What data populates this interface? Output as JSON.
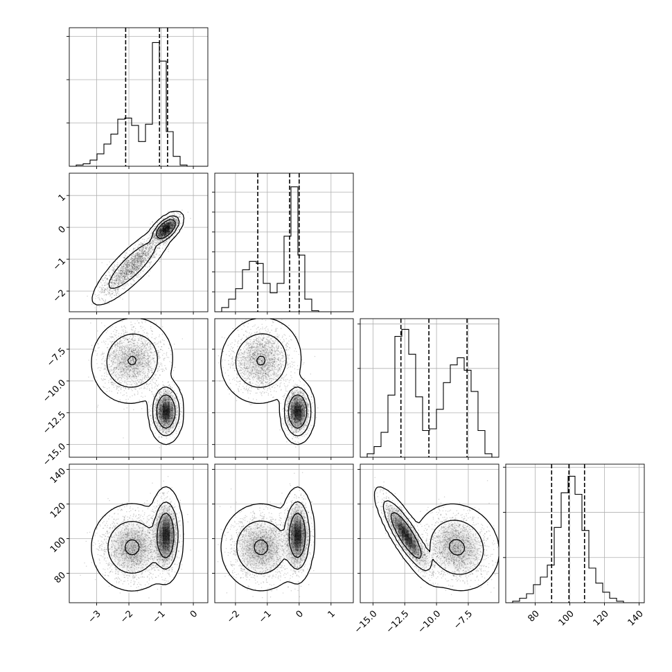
{
  "chart_data": {
    "type": "corner",
    "params": [
      {
        "range": [
          -3.85,
          0.45
        ],
        "ticks": [
          -3,
          -2,
          -1,
          0
        ],
        "tick_labels": [
          "−3",
          "−2",
          "−1",
          "0"
        ],
        "quantiles": [
          -2.1,
          -1.05,
          -0.8
        ]
      },
      {
        "range": [
          -2.65,
          1.7
        ],
        "ticks": [
          -2,
          -1,
          0,
          1
        ],
        "tick_labels": [
          "−2",
          "−1",
          "0",
          "1"
        ],
        "quantiles": [
          -1.3,
          -0.3,
          0.0
        ]
      },
      {
        "range": [
          -16.0,
          -5.1
        ],
        "ticks": [
          -15.0,
          -12.5,
          -10.0,
          -7.5
        ],
        "tick_labels": [
          "−15.0",
          "−12.5",
          "−10.0",
          "−7.5"
        ],
        "quantiles": [
          -12.8,
          -10.6,
          -7.6
        ]
      },
      {
        "range": [
          63,
          143
        ],
        "ticks": [
          80,
          100,
          120,
          140
        ],
        "tick_labels": [
          "80",
          "100",
          "120",
          "140"
        ],
        "quantiles": [
          89.5,
          99.5,
          108.5
        ]
      }
    ],
    "histograms": [
      {
        "bins": [
          -3.85,
          -3.635,
          -3.42,
          -3.205,
          -2.99,
          -2.775,
          -2.56,
          -2.345,
          -2.13,
          -1.915,
          -1.7,
          -1.485,
          -1.27,
          -1.055,
          -0.84,
          -0.625,
          -0.41,
          -0.195,
          0.02,
          0.235,
          0.45
        ],
        "counts": [
          0,
          1,
          2,
          5,
          10,
          18,
          26,
          38,
          39,
          33,
          20,
          34,
          100,
          85,
          28,
          8,
          1,
          0,
          0,
          0
        ],
        "ymax": 112,
        "yticks": [
          0,
          35,
          70,
          105
        ]
      },
      {
        "bins": [
          -2.65,
          -2.4325,
          -2.215,
          -1.9975,
          -1.78,
          -1.5625,
          -1.345,
          -1.1275,
          -0.91,
          -0.6925,
          -0.475,
          -0.2575,
          -0.04,
          0.1775,
          0.395,
          0.6125,
          0.83,
          1.0475,
          1.265,
          1.4825,
          1.7
        ],
        "counts": [
          0,
          4,
          12,
          22,
          40,
          48,
          46,
          27,
          18,
          27,
          72,
          119,
          54,
          12,
          1,
          0,
          0,
          0,
          0,
          0
        ],
        "ymax": 132,
        "yticks": [
          0,
          19,
          38,
          57,
          76,
          95,
          114
        ]
      },
      {
        "bins": [
          -16.0,
          -15.455,
          -14.91,
          -14.365,
          -13.82,
          -13.275,
          -12.73,
          -12.185,
          -11.64,
          -11.095,
          -10.55,
          -10.005,
          -9.46,
          -8.915,
          -8.37,
          -7.825,
          -7.28,
          -6.735,
          -6.19,
          -5.645,
          -5.1
        ],
        "counts": [
          0,
          2,
          6,
          14,
          35,
          68,
          72,
          58,
          34,
          15,
          16,
          27,
          42,
          52,
          56,
          49,
          37,
          15,
          2,
          0
        ],
        "ymax": 78,
        "yticks": [
          0,
          25,
          50,
          75
        ]
      },
      {
        "bins": [
          63,
          67,
          71,
          75,
          79,
          83,
          87,
          91,
          95,
          99,
          103,
          107,
          111,
          115,
          119,
          123,
          127,
          131,
          135,
          139,
          143
        ],
        "counts": [
          0,
          1,
          3,
          6,
          12,
          17,
          25,
          50,
          73,
          84,
          72,
          48,
          23,
          13,
          7,
          3,
          1,
          0,
          0,
          0
        ],
        "ymax": 92,
        "yticks": [
          0,
          30,
          60,
          90
        ]
      }
    ],
    "modes": [
      {
        "weight": 0.52,
        "mean": [
          -1.9,
          -1.2,
          -8.4,
          95
        ],
        "sd": [
          0.45,
          0.45,
          1.2,
          9
        ]
      },
      {
        "weight": 0.48,
        "mean": [
          -0.85,
          -0.05,
          -12.4,
          102
        ],
        "sd": [
          0.17,
          0.17,
          0.8,
          9
        ]
      }
    ],
    "mode_corr": [
      [
        [
          1,
          0.85,
          0.05,
          0
        ],
        [
          0.85,
          1,
          0.05,
          0
        ],
        [
          0.05,
          0.05,
          1,
          -0.1
        ],
        [
          0,
          0,
          -0.1,
          1
        ]
      ],
      [
        [
          1,
          0.6,
          0,
          0
        ],
        [
          0.6,
          1,
          0,
          0
        ],
        [
          0,
          0,
          1,
          -0.85
        ],
        [
          0,
          0,
          -0.85,
          1
        ]
      ]
    ],
    "contour_levels": [
      0.39,
      0.86,
      0.99
    ],
    "grid": true
  }
}
